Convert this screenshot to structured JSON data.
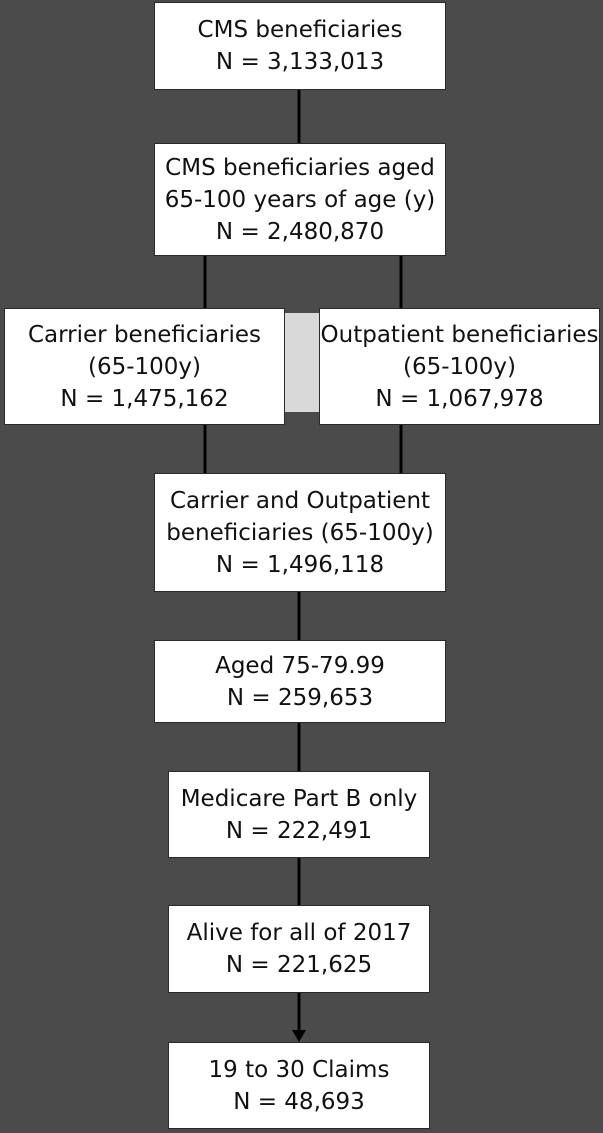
{
  "flowchart": {
    "total": {
      "line1": "CMS beneficiaries",
      "line2": "N = 3,133,013"
    },
    "aged": {
      "line1": "CMS beneficiaries aged",
      "line2": "65-100 years of age (y)",
      "line3": "N = 2,480,870"
    },
    "carrier": {
      "line1": "Carrier beneficiaries",
      "line2": "(65-100y)",
      "line3": "N = 1,475,162"
    },
    "outpatient": {
      "line1": "Outpatient beneficiaries",
      "line2": "(65-100y)",
      "line3": "N = 1,067,978"
    },
    "combined": {
      "line1": "Carrier and Outpatient",
      "line2": "beneficiaries (65-100y)",
      "line3": "N = 1,496,118"
    },
    "age_range": {
      "line1": "Aged 75-79.99",
      "line2": "N = 259,653"
    },
    "part_b": {
      "line1": "Medicare Part B only",
      "line2": "N = 222,491"
    },
    "alive": {
      "line1": "Alive for all of 2017",
      "line2": "N = 221,625"
    },
    "claims": {
      "line1": "19 to 30 Claims",
      "line2": "N = 48,693"
    }
  }
}
